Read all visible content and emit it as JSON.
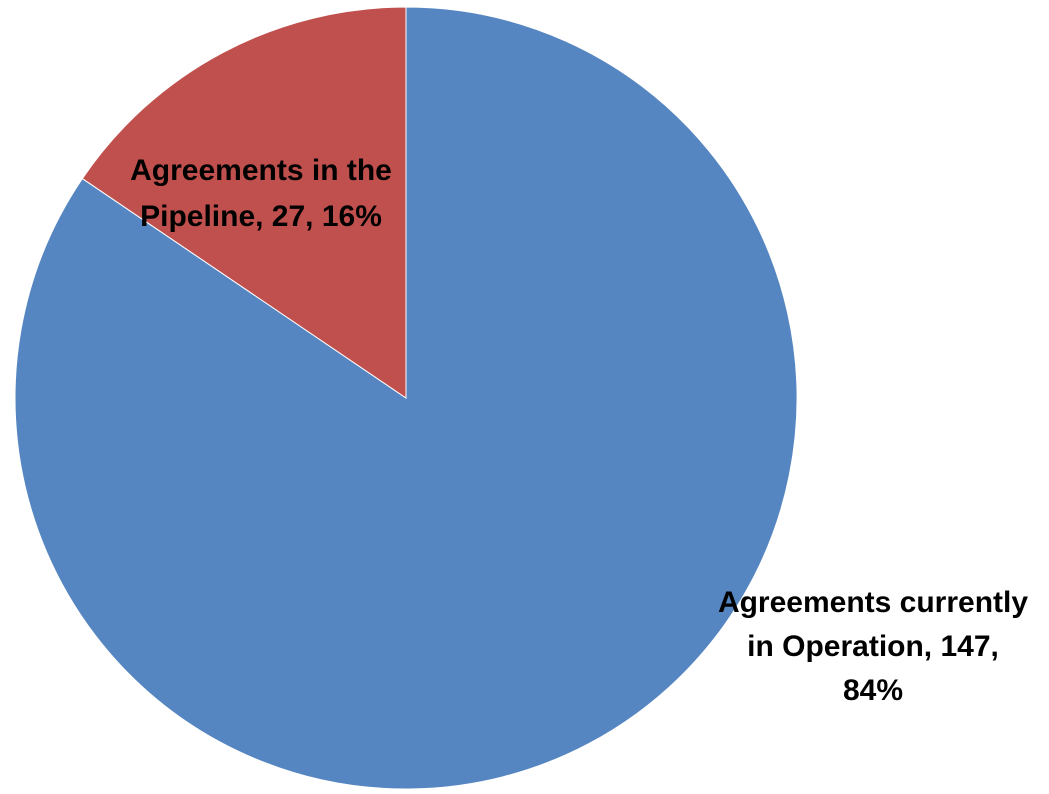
{
  "chart_data": {
    "type": "pie",
    "title": "",
    "slices": [
      {
        "label": "Agreements currently in Operation",
        "value": 147,
        "percent": "84%",
        "color": "#5686C1",
        "data_label_lines": [
          "Agreements currently",
          "in Operation, 147,",
          "84%"
        ]
      },
      {
        "label": "Agreements in the Pipeline",
        "value": 27,
        "percent": "16%",
        "color": "#C0504D",
        "data_label_lines": [
          "Agreements in the",
          "Pipeline, 27, 16%"
        ]
      }
    ],
    "start_angle": "12 o'clock",
    "direction": "clockwise",
    "legend": "none"
  }
}
